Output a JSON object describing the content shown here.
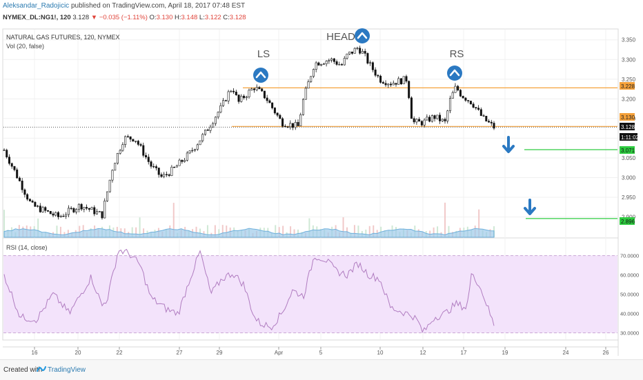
{
  "header": {
    "author": "Aleksandar_Radojicic",
    "published": " published on TradingView.com, April 18, 2017 07:48 EST",
    "symbol": "NYMEX_DL:NG1!, 120",
    "last": "3.128",
    "change": "▼ −0.035 (−1.11%)",
    "o_label": "O:",
    "o": "3.130",
    "h_label": "H:",
    "h": "3.148",
    "l_label": "L:",
    "l": "3.122",
    "c_label": "C:",
    "c": "3.128"
  },
  "footer": {
    "created": "Created with",
    "brand": "TradingView"
  },
  "colors": {
    "up": "#111111",
    "level": "#f5a13a",
    "target": "#2ecc40",
    "rsi": "#b07cc0",
    "rsi_band": "#f3e3fb",
    "marker": "#2b79c2",
    "vol_ma": "#9ecbea"
  },
  "chart_data": [
    {
      "type": "candlestick",
      "title": "NATURAL GAS FUTURES, 120, NYMEX",
      "subtitle": "Vol (20, false)",
      "y_ticks": [
        "3.350",
        "3.300",
        "3.250",
        "3.200",
        "3.150",
        "3.100",
        "3.050",
        "3.000",
        "2.950",
        "2.900"
      ],
      "x_ticks": [
        "16",
        "20",
        "22",
        "27",
        "29",
        "Apr",
        "5",
        "10",
        "12",
        "17",
        "19",
        "24",
        "26"
      ],
      "ylim": [
        2.88,
        3.36
      ],
      "price_path": [
        [
          0,
          3.07
        ],
        [
          5,
          2.93
        ],
        [
          10,
          2.9
        ],
        [
          14,
          2.93
        ],
        [
          18,
          2.905
        ],
        [
          20,
          3.03
        ],
        [
          22,
          3.1
        ],
        [
          24,
          3.1
        ],
        [
          27,
          3.03
        ],
        [
          29,
          3.0
        ],
        [
          31,
          3.02
        ],
        [
          34,
          3.06
        ],
        [
          37,
          3.115
        ],
        [
          39,
          3.16
        ],
        [
          40,
          3.18
        ],
        [
          41,
          3.21
        ],
        [
          42,
          3.23
        ],
        [
          43,
          3.19
        ],
        [
          44,
          3.205
        ],
        [
          46,
          3.23
        ],
        [
          48,
          3.205
        ],
        [
          51,
          3.14
        ],
        [
          54,
          3.13
        ],
        [
          55,
          3.2
        ],
        [
          57,
          3.29
        ],
        [
          60,
          3.3
        ],
        [
          62,
          3.285
        ],
        [
          63,
          3.31
        ],
        [
          65,
          3.33
        ],
        [
          66,
          3.315
        ],
        [
          67,
          3.29
        ],
        [
          69,
          3.25
        ],
        [
          71,
          3.24
        ],
        [
          74,
          3.25
        ],
        [
          75,
          3.14
        ],
        [
          77,
          3.14
        ],
        [
          79,
          3.155
        ],
        [
          81,
          3.14
        ],
        [
          82,
          3.2
        ],
        [
          83,
          3.23
        ],
        [
          84,
          3.21
        ],
        [
          86,
          3.19
        ],
        [
          88,
          3.15
        ],
        [
          90,
          3.128
        ]
      ],
      "horizontal_levels": [
        3.228,
        3.13,
        3.128,
        3.071,
        2.896
      ],
      "price_labels": [
        "3.228",
        "3.130",
        "3.128",
        "1:11:02",
        "3.071",
        "2.896"
      ],
      "pattern_labels": [
        "LS",
        "HEAD",
        "RS"
      ]
    },
    {
      "type": "line",
      "title": "RSI (14, close)",
      "y_ticks": [
        "70.0000",
        "60.0000",
        "50.0000",
        "40.0000",
        "30.0000"
      ],
      "ylim": [
        27,
        77
      ],
      "band": [
        30,
        70
      ],
      "rsi_path": [
        [
          0,
          60
        ],
        [
          3,
          38
        ],
        [
          6,
          37
        ],
        [
          9,
          50
        ],
        [
          12,
          40
        ],
        [
          16,
          59
        ],
        [
          18,
          44
        ],
        [
          19,
          48
        ],
        [
          21,
          73
        ],
        [
          23,
          71
        ],
        [
          25,
          65
        ],
        [
          27,
          48
        ],
        [
          30,
          42
        ],
        [
          32,
          40
        ],
        [
          34,
          57
        ],
        [
          36,
          72
        ],
        [
          38,
          50
        ],
        [
          40,
          58
        ],
        [
          42,
          61
        ],
        [
          44,
          55
        ],
        [
          46,
          38
        ],
        [
          47,
          35
        ],
        [
          49,
          33
        ],
        [
          51,
          40
        ],
        [
          53,
          52
        ],
        [
          55,
          49
        ],
        [
          57,
          70
        ],
        [
          59,
          68
        ],
        [
          61,
          62
        ],
        [
          63,
          60
        ],
        [
          65,
          66
        ],
        [
          67,
          60
        ],
        [
          69,
          58
        ],
        [
          71,
          43
        ],
        [
          73,
          41
        ],
        [
          75,
          39
        ],
        [
          76,
          36
        ],
        [
          77,
          30
        ],
        [
          79,
          38
        ],
        [
          81,
          40
        ],
        [
          83,
          45
        ],
        [
          85,
          43
        ],
        [
          86,
          62
        ],
        [
          88,
          50
        ],
        [
          90,
          34
        ]
      ]
    }
  ]
}
